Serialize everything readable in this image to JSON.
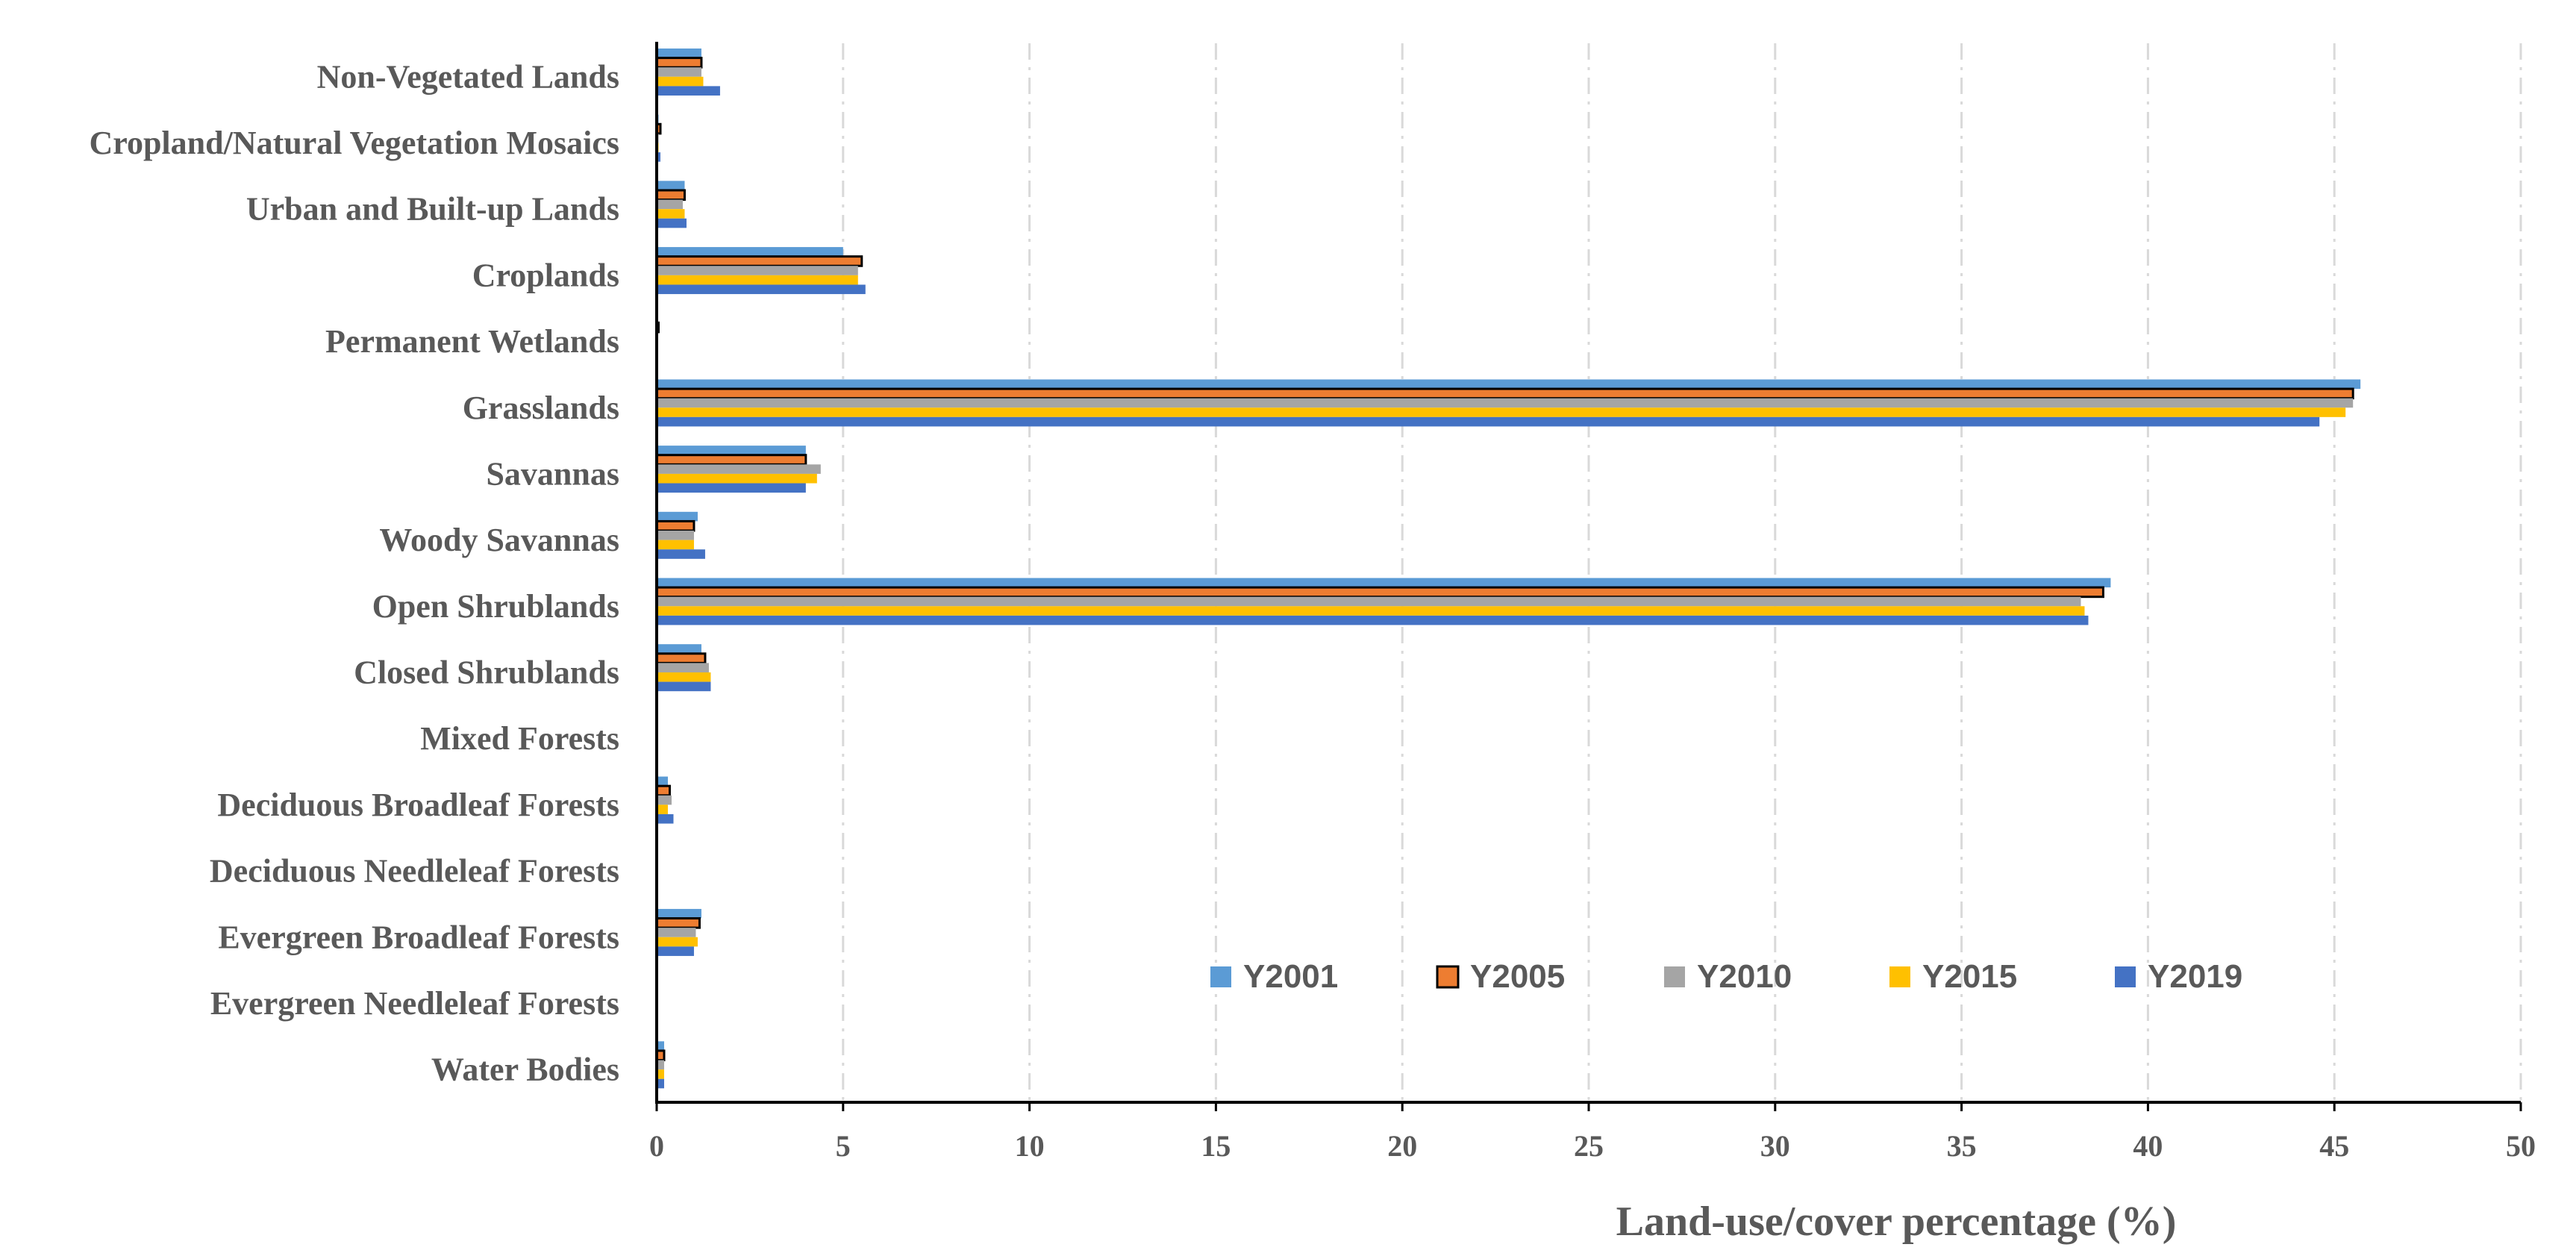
{
  "chart_data": {
    "type": "bar",
    "orientation": "horizontal",
    "title": "",
    "xlabel": "Land-use/cover percentage (%)",
    "ylabel": "",
    "xlim": [
      0,
      50
    ],
    "xticks": [
      0,
      5,
      10,
      15,
      20,
      25,
      30,
      35,
      40,
      45,
      50
    ],
    "grid": "vertical dash-dot",
    "legend_position": "lower-right",
    "categories": [
      "Non-Vegetated Lands",
      "Cropland/Natural Vegetation Mosaics",
      "Urban and Built-up Lands",
      "Croplands",
      "Permanent Wetlands",
      "Grasslands",
      "Savannas",
      "Woody Savannas",
      "Open Shrublands",
      "Closed Shrublands",
      "Mixed Forests",
      "Deciduous Broadleaf Forests",
      "Deciduous Needleleaf Forests",
      "Evergreen Broadleaf Forests",
      "Evergreen Needleleaf Forests",
      "Water Bodies"
    ],
    "series": [
      {
        "name": "Y2001",
        "color": "#5B9BD5",
        "outline": false,
        "values": [
          1.2,
          0.05,
          0.75,
          5.0,
          0.02,
          45.7,
          4.0,
          1.1,
          39.0,
          1.2,
          0.0,
          0.3,
          0.0,
          1.2,
          0.0,
          0.2
        ]
      },
      {
        "name": "Y2005",
        "color": "#ED7D31",
        "outline": true,
        "values": [
          1.2,
          0.1,
          0.75,
          5.5,
          0.05,
          45.5,
          4.0,
          1.0,
          38.8,
          1.3,
          0.0,
          0.35,
          0.0,
          1.15,
          0.0,
          0.2
        ]
      },
      {
        "name": "Y2010",
        "color": "#A5A5A5",
        "outline": false,
        "values": [
          1.2,
          0.05,
          0.7,
          5.4,
          0.02,
          45.5,
          4.4,
          1.0,
          38.2,
          1.4,
          0.0,
          0.4,
          0.0,
          1.05,
          0.0,
          0.2
        ]
      },
      {
        "name": "Y2015",
        "color": "#FFC000",
        "outline": false,
        "values": [
          1.25,
          0.05,
          0.75,
          5.4,
          0.02,
          45.3,
          4.3,
          1.0,
          38.3,
          1.45,
          0.0,
          0.3,
          0.0,
          1.1,
          0.0,
          0.2
        ]
      },
      {
        "name": "Y2019",
        "color": "#4472C4",
        "outline": false,
        "values": [
          1.7,
          0.1,
          0.8,
          5.6,
          0.02,
          44.6,
          4.0,
          1.3,
          38.4,
          1.45,
          0.0,
          0.45,
          0.0,
          1.0,
          0.0,
          0.2
        ]
      }
    ]
  }
}
